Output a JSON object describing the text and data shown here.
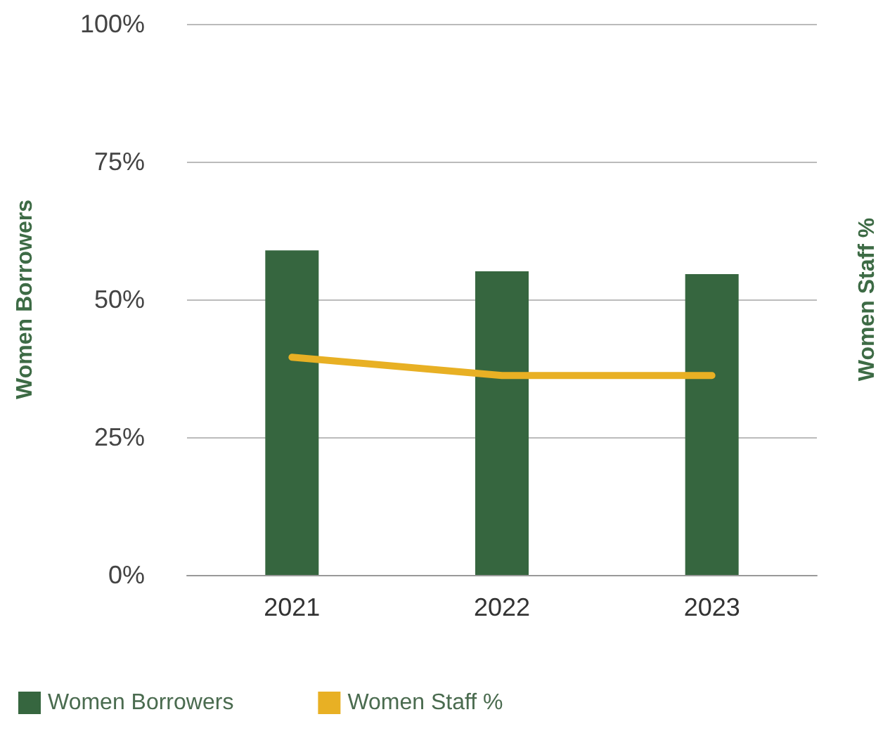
{
  "chart_data": {
    "type": "bar",
    "categories": [
      "2021",
      "2022",
      "2023"
    ],
    "series": [
      {
        "name": "Women Borrowers",
        "color": "#36663f",
        "values": [
          58.9,
          55.1,
          54.6
        ]
      },
      {
        "name": "Women Staff %",
        "type": "line",
        "color": "#e8b024",
        "values": [
          39.5,
          36.2,
          36.2
        ]
      }
    ],
    "ylabel": "Women Borrowers",
    "y2label": "Women Staff %",
    "ylim": [
      0,
      100
    ],
    "yticks": [
      {
        "value": 0,
        "label": "0%"
      },
      {
        "value": 25,
        "label": "25%"
      },
      {
        "value": 50,
        "label": "50%"
      },
      {
        "value": 75,
        "label": "75%"
      },
      {
        "value": 100,
        "label": "100%"
      }
    ],
    "grid": "y",
    "legend": "bottom left",
    "marker": "none",
    "line_style": "solid"
  }
}
